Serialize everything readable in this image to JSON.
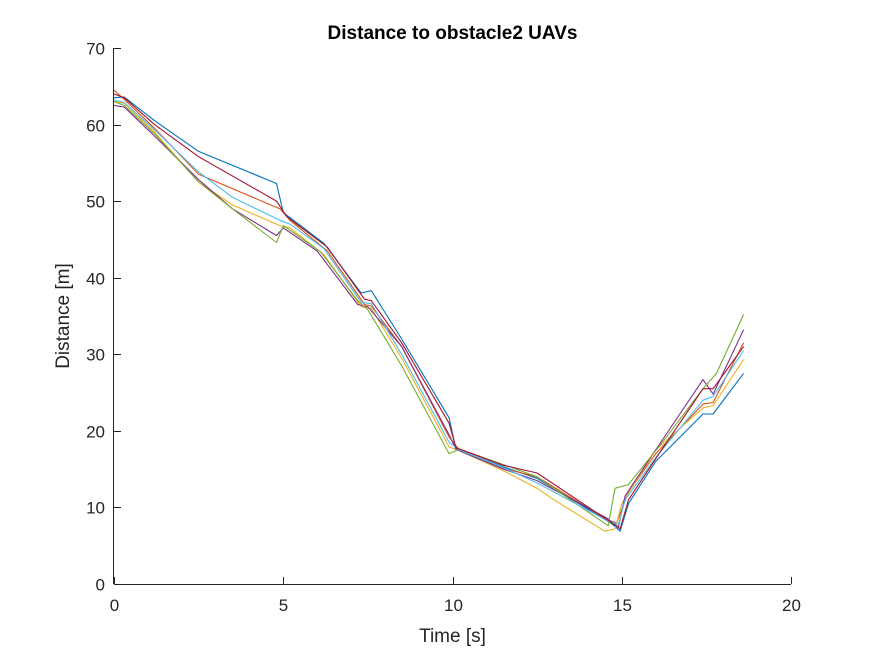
{
  "chart_data": {
    "type": "line",
    "title": "Distance to obstacle2 UAVs",
    "xlabel": "Time [s]",
    "ylabel": "Distance [m]",
    "xlim": [
      0,
      20
    ],
    "ylim": [
      0,
      70
    ],
    "xticks": [
      0,
      5,
      10,
      15,
      20
    ],
    "yticks": [
      0,
      10,
      20,
      30,
      40,
      50,
      60,
      70
    ],
    "grid": false,
    "legend": "none",
    "series": [
      {
        "color": "#0072BD",
        "points": [
          [
            0,
            63.5
          ],
          [
            0.3,
            63.6
          ],
          [
            1.2,
            60.5
          ],
          [
            2.5,
            56.5
          ],
          [
            4.8,
            52.3
          ],
          [
            5.0,
            48.5
          ],
          [
            6.2,
            44.5
          ],
          [
            7.3,
            38.0
          ],
          [
            7.6,
            38.3
          ],
          [
            8.5,
            32.0
          ],
          [
            9.9,
            21.7
          ],
          [
            10.1,
            17.6
          ],
          [
            11.5,
            15.3
          ],
          [
            12.5,
            13.8
          ],
          [
            14.7,
            7.9
          ],
          [
            14.95,
            6.9
          ],
          [
            15.2,
            10.5
          ],
          [
            16.0,
            16.0
          ],
          [
            17.4,
            22.2
          ],
          [
            17.7,
            22.2
          ],
          [
            18.6,
            27.5
          ]
        ]
      },
      {
        "color": "#D95319",
        "points": [
          [
            0,
            64.5
          ],
          [
            0.3,
            63.3
          ],
          [
            1.2,
            59.5
          ],
          [
            2.5,
            53.5
          ],
          [
            4.9,
            49.0
          ],
          [
            5.2,
            47.5
          ],
          [
            6.3,
            43.5
          ],
          [
            7.4,
            36.5
          ],
          [
            7.6,
            36.3
          ],
          [
            8.5,
            31.0
          ],
          [
            9.9,
            19.2
          ],
          [
            10.2,
            17.5
          ],
          [
            11.5,
            15.1
          ],
          [
            12.5,
            14.0
          ],
          [
            14.6,
            8.3
          ],
          [
            14.85,
            8.0
          ],
          [
            15.2,
            12.0
          ],
          [
            16.0,
            17.0
          ],
          [
            17.4,
            23.5
          ],
          [
            17.7,
            23.7
          ],
          [
            18.6,
            31.5
          ]
        ]
      },
      {
        "color": "#EDB120",
        "points": [
          [
            0,
            63.0
          ],
          [
            0.3,
            62.8
          ],
          [
            1.2,
            59.0
          ],
          [
            2.5,
            52.5
          ],
          [
            3.5,
            49.5
          ],
          [
            4.9,
            46.8
          ],
          [
            5.2,
            46.5
          ],
          [
            6.2,
            43.0
          ],
          [
            7.3,
            36.2
          ],
          [
            7.6,
            36.0
          ],
          [
            8.5,
            29.5
          ],
          [
            9.9,
            17.9
          ],
          [
            10.2,
            17.4
          ],
          [
            11.5,
            14.8
          ],
          [
            12.5,
            12.5
          ],
          [
            13.0,
            11.0
          ],
          [
            14.5,
            6.9
          ],
          [
            14.8,
            7.2
          ],
          [
            15.0,
            10.5
          ],
          [
            16.0,
            17.5
          ],
          [
            17.4,
            23.0
          ],
          [
            17.7,
            23.3
          ],
          [
            18.6,
            29.3
          ]
        ]
      },
      {
        "color": "#7E2F8E",
        "points": [
          [
            0,
            62.5
          ],
          [
            0.3,
            62.3
          ],
          [
            1.2,
            58.5
          ],
          [
            2.5,
            52.8
          ],
          [
            3.5,
            49.0
          ],
          [
            4.8,
            45.5
          ],
          [
            5.0,
            46.5
          ],
          [
            6.0,
            43.5
          ],
          [
            7.2,
            36.5
          ],
          [
            7.5,
            36.2
          ],
          [
            8.5,
            31.0
          ],
          [
            9.9,
            19.5
          ],
          [
            10.1,
            17.6
          ],
          [
            11.5,
            15.0
          ],
          [
            12.5,
            13.5
          ],
          [
            14.6,
            8.5
          ],
          [
            14.9,
            7.4
          ],
          [
            15.1,
            11.5
          ],
          [
            16.0,
            17.5
          ],
          [
            17.4,
            26.7
          ],
          [
            17.7,
            24.8
          ],
          [
            18.6,
            33.2
          ]
        ]
      },
      {
        "color": "#77AC30",
        "points": [
          [
            0,
            63.0
          ],
          [
            0.3,
            62.5
          ],
          [
            1.2,
            58.8
          ],
          [
            2.5,
            52.5
          ],
          [
            3.5,
            49.0
          ],
          [
            4.8,
            44.6
          ],
          [
            5.0,
            46.8
          ],
          [
            6.1,
            43.4
          ],
          [
            7.2,
            37.0
          ],
          [
            7.5,
            35.8
          ],
          [
            8.5,
            28.5
          ],
          [
            9.9,
            17.0
          ],
          [
            10.2,
            17.6
          ],
          [
            11.5,
            15.6
          ],
          [
            12.5,
            14.0
          ],
          [
            14.6,
            7.6
          ],
          [
            14.8,
            12.5
          ],
          [
            15.2,
            13.0
          ],
          [
            16.2,
            18.5
          ],
          [
            17.4,
            25.5
          ],
          [
            17.8,
            27.5
          ],
          [
            18.6,
            35.2
          ]
        ]
      },
      {
        "color": "#4DBEEE",
        "points": [
          [
            0,
            63.2
          ],
          [
            0.3,
            62.9
          ],
          [
            1.2,
            59.3
          ],
          [
            2.5,
            53.8
          ],
          [
            3.5,
            50.5
          ],
          [
            4.9,
            47.5
          ],
          [
            5.2,
            47.0
          ],
          [
            6.2,
            43.8
          ],
          [
            7.3,
            36.8
          ],
          [
            7.6,
            36.6
          ],
          [
            8.5,
            30.0
          ],
          [
            9.9,
            18.5
          ],
          [
            10.2,
            17.5
          ],
          [
            11.5,
            15.2
          ],
          [
            12.5,
            13.2
          ],
          [
            14.6,
            8.2
          ],
          [
            14.9,
            7.8
          ],
          [
            15.1,
            11.0
          ],
          [
            16.0,
            16.5
          ],
          [
            17.4,
            24.0
          ],
          [
            17.7,
            24.5
          ],
          [
            18.6,
            30.5
          ]
        ]
      },
      {
        "color": "#A2142F",
        "points": [
          [
            0,
            64.0
          ],
          [
            0.3,
            63.5
          ],
          [
            1.2,
            60.0
          ],
          [
            2.5,
            55.8
          ],
          [
            4.8,
            50.0
          ],
          [
            5.1,
            48.0
          ],
          [
            6.3,
            44.0
          ],
          [
            7.4,
            37.2
          ],
          [
            7.6,
            37.0
          ],
          [
            8.5,
            31.5
          ],
          [
            9.9,
            21.0
          ],
          [
            10.1,
            17.8
          ],
          [
            11.5,
            15.5
          ],
          [
            12.5,
            14.5
          ],
          [
            14.7,
            8.0
          ],
          [
            14.95,
            7.2
          ],
          [
            15.2,
            11.0
          ],
          [
            16.1,
            17.0
          ],
          [
            17.4,
            25.5
          ],
          [
            17.7,
            25.5
          ],
          [
            18.6,
            31.0
          ]
        ]
      }
    ]
  }
}
